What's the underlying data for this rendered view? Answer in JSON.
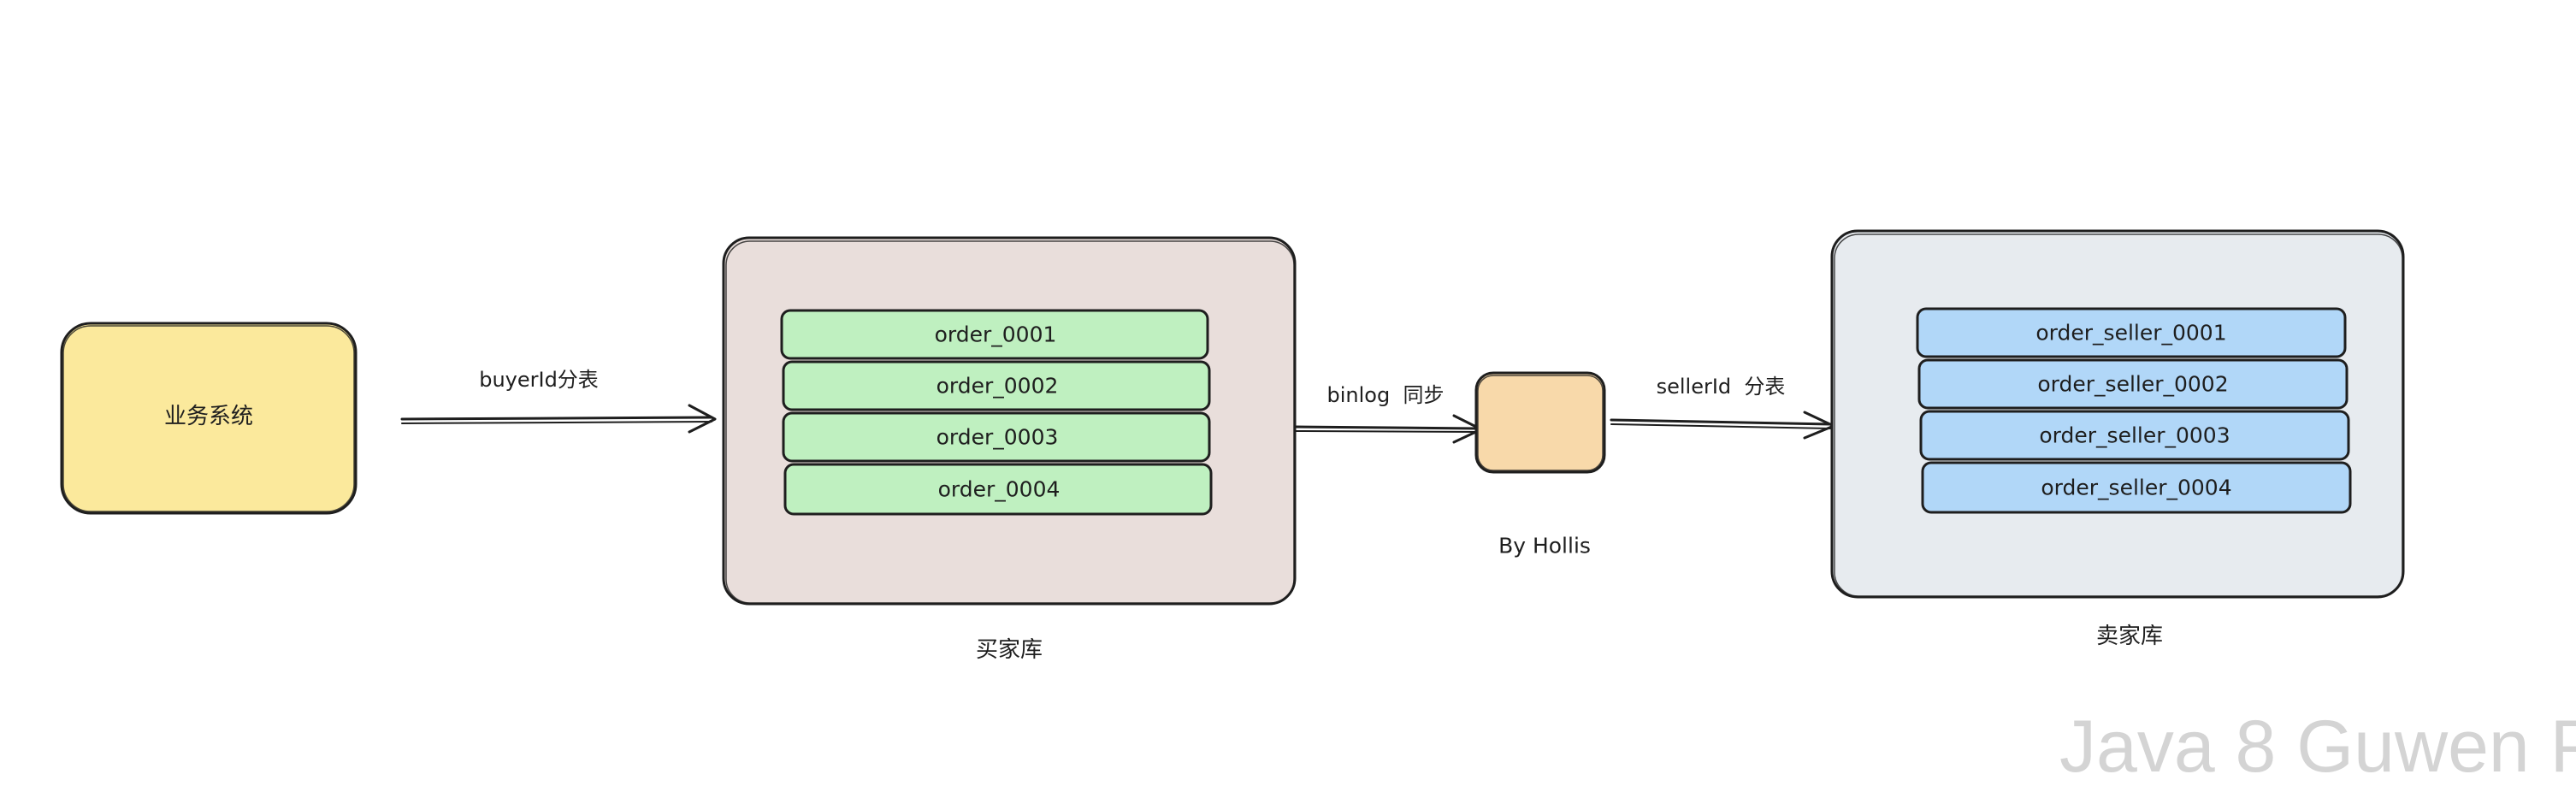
{
  "diagram": {
    "business_system": {
      "label": "业务系统"
    },
    "buyer_db": {
      "label": "买家库",
      "tables": [
        "order_0001",
        "order_0002",
        "order_0003",
        "order_0004"
      ]
    },
    "sync_node": {
      "label": "By Hollis"
    },
    "seller_db": {
      "label": "卖家库",
      "tables": [
        "order_seller_0001",
        "order_seller_0002",
        "order_seller_0003",
        "order_seller_0004"
      ]
    },
    "edges": {
      "buyer_shard": "buyerId分表",
      "binlog_sync": "binlog  同步",
      "seller_shard": "sellerId  分表"
    },
    "colors": {
      "business_fill": "#fbe99c",
      "buyer_db_fill": "#e9dedb",
      "buyer_table_fill": "#bff0c0",
      "sync_fill": "#f8d9aa",
      "seller_db_fill": "#e7ebef",
      "seller_table_fill": "#b1d7f8",
      "stroke": "#1e1e1e"
    }
  },
  "watermark": {
    "text": "Java 8 Guwen P"
  }
}
